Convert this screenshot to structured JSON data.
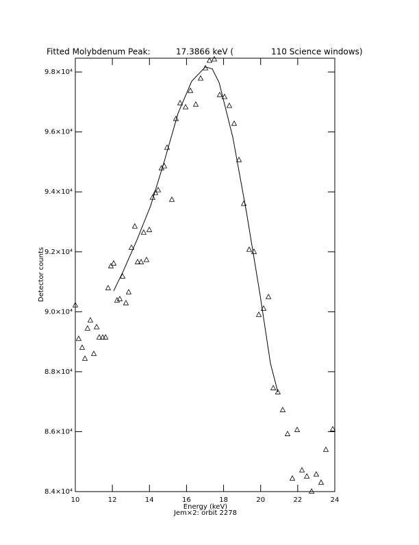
{
  "chart_data": {
    "type": "scatter",
    "title": [
      "Fitted Molybdenum Peak:",
      "17.3866 keV (",
      "110 Science windows)"
    ],
    "x_label": "Energy (keV)",
    "subtitle": "Jem×2: orbit 2278",
    "y_label": "Detector counts",
    "xlim": [
      10,
      24
    ],
    "ylim": [
      84000,
      98460
    ],
    "xticks": [
      10,
      12,
      14,
      16,
      18,
      20,
      22,
      24
    ],
    "yticks": [
      {
        "value": 84000,
        "label": "8.4×10⁴"
      },
      {
        "value": 86000,
        "label": "8.6×10⁴"
      },
      {
        "value": 88000,
        "label": "8.8×10⁴"
      },
      {
        "value": 90000,
        "label": "9.0×10⁴"
      },
      {
        "value": 92000,
        "label": "9.2×10⁴"
      },
      {
        "value": 94000,
        "label": "9.4×10⁴"
      },
      {
        "value": 96000,
        "label": "9.6×10⁴"
      },
      {
        "value": 98000,
        "label": "9.8×10⁴"
      }
    ],
    "series": [
      {
        "marker": "triangle",
        "color": "#000000",
        "x": [
          10.0,
          10.18,
          10.37,
          10.52,
          10.66,
          10.81,
          11.0,
          11.15,
          11.29,
          11.48,
          11.63,
          11.77,
          11.92,
          12.07,
          12.25,
          12.4,
          12.55,
          12.73,
          12.88,
          13.03,
          13.21,
          13.36,
          13.55,
          13.69,
          13.84,
          13.99,
          14.17,
          14.32,
          14.47,
          14.65,
          14.8,
          14.95,
          15.21,
          15.43,
          15.65,
          15.95,
          16.21,
          16.5,
          16.76,
          17.02,
          17.24,
          17.5,
          17.79,
          18.05,
          18.31,
          18.57,
          18.83,
          19.09,
          19.38,
          19.64,
          19.9,
          20.16,
          20.42,
          20.68,
          20.93,
          21.19,
          21.45,
          21.71,
          21.97,
          22.23,
          22.49,
          22.75,
          23.0,
          23.26,
          23.52,
          23.89
        ],
        "values": [
          90217,
          89097,
          88800,
          88434,
          89440,
          89714,
          88594,
          89486,
          89143,
          89143,
          89143,
          90789,
          91520,
          91611,
          90377,
          90423,
          91177,
          90286,
          90651,
          92137,
          92846,
          91657,
          91657,
          92640,
          91726,
          92731,
          93806,
          93966,
          94057,
          94789,
          94857,
          95474,
          93737,
          96434,
          96960,
          96823,
          97371,
          96914,
          97783,
          98126,
          98377,
          98423,
          97234,
          97166,
          96869,
          96274,
          95063,
          93600,
          92069,
          92000,
          89897,
          90103,
          90491,
          87451,
          87314,
          86720,
          85920,
          84434,
          86057,
          84709,
          84503,
          84000,
          84571,
          84297,
          85394,
          86080
        ]
      },
      {
        "marker": "line",
        "color": "#000000",
        "x": [
          12.07,
          12.59,
          13.32,
          14.06,
          14.8,
          15.54,
          16.28,
          17.02,
          17.39,
          17.76,
          18.5,
          19.24,
          19.97,
          20.53,
          20.93
        ],
        "values": [
          90697,
          91360,
          92389,
          93531,
          95017,
          96617,
          97691,
          98171,
          98103,
          97646,
          95817,
          93303,
          90560,
          88274,
          87314
        ]
      }
    ]
  }
}
